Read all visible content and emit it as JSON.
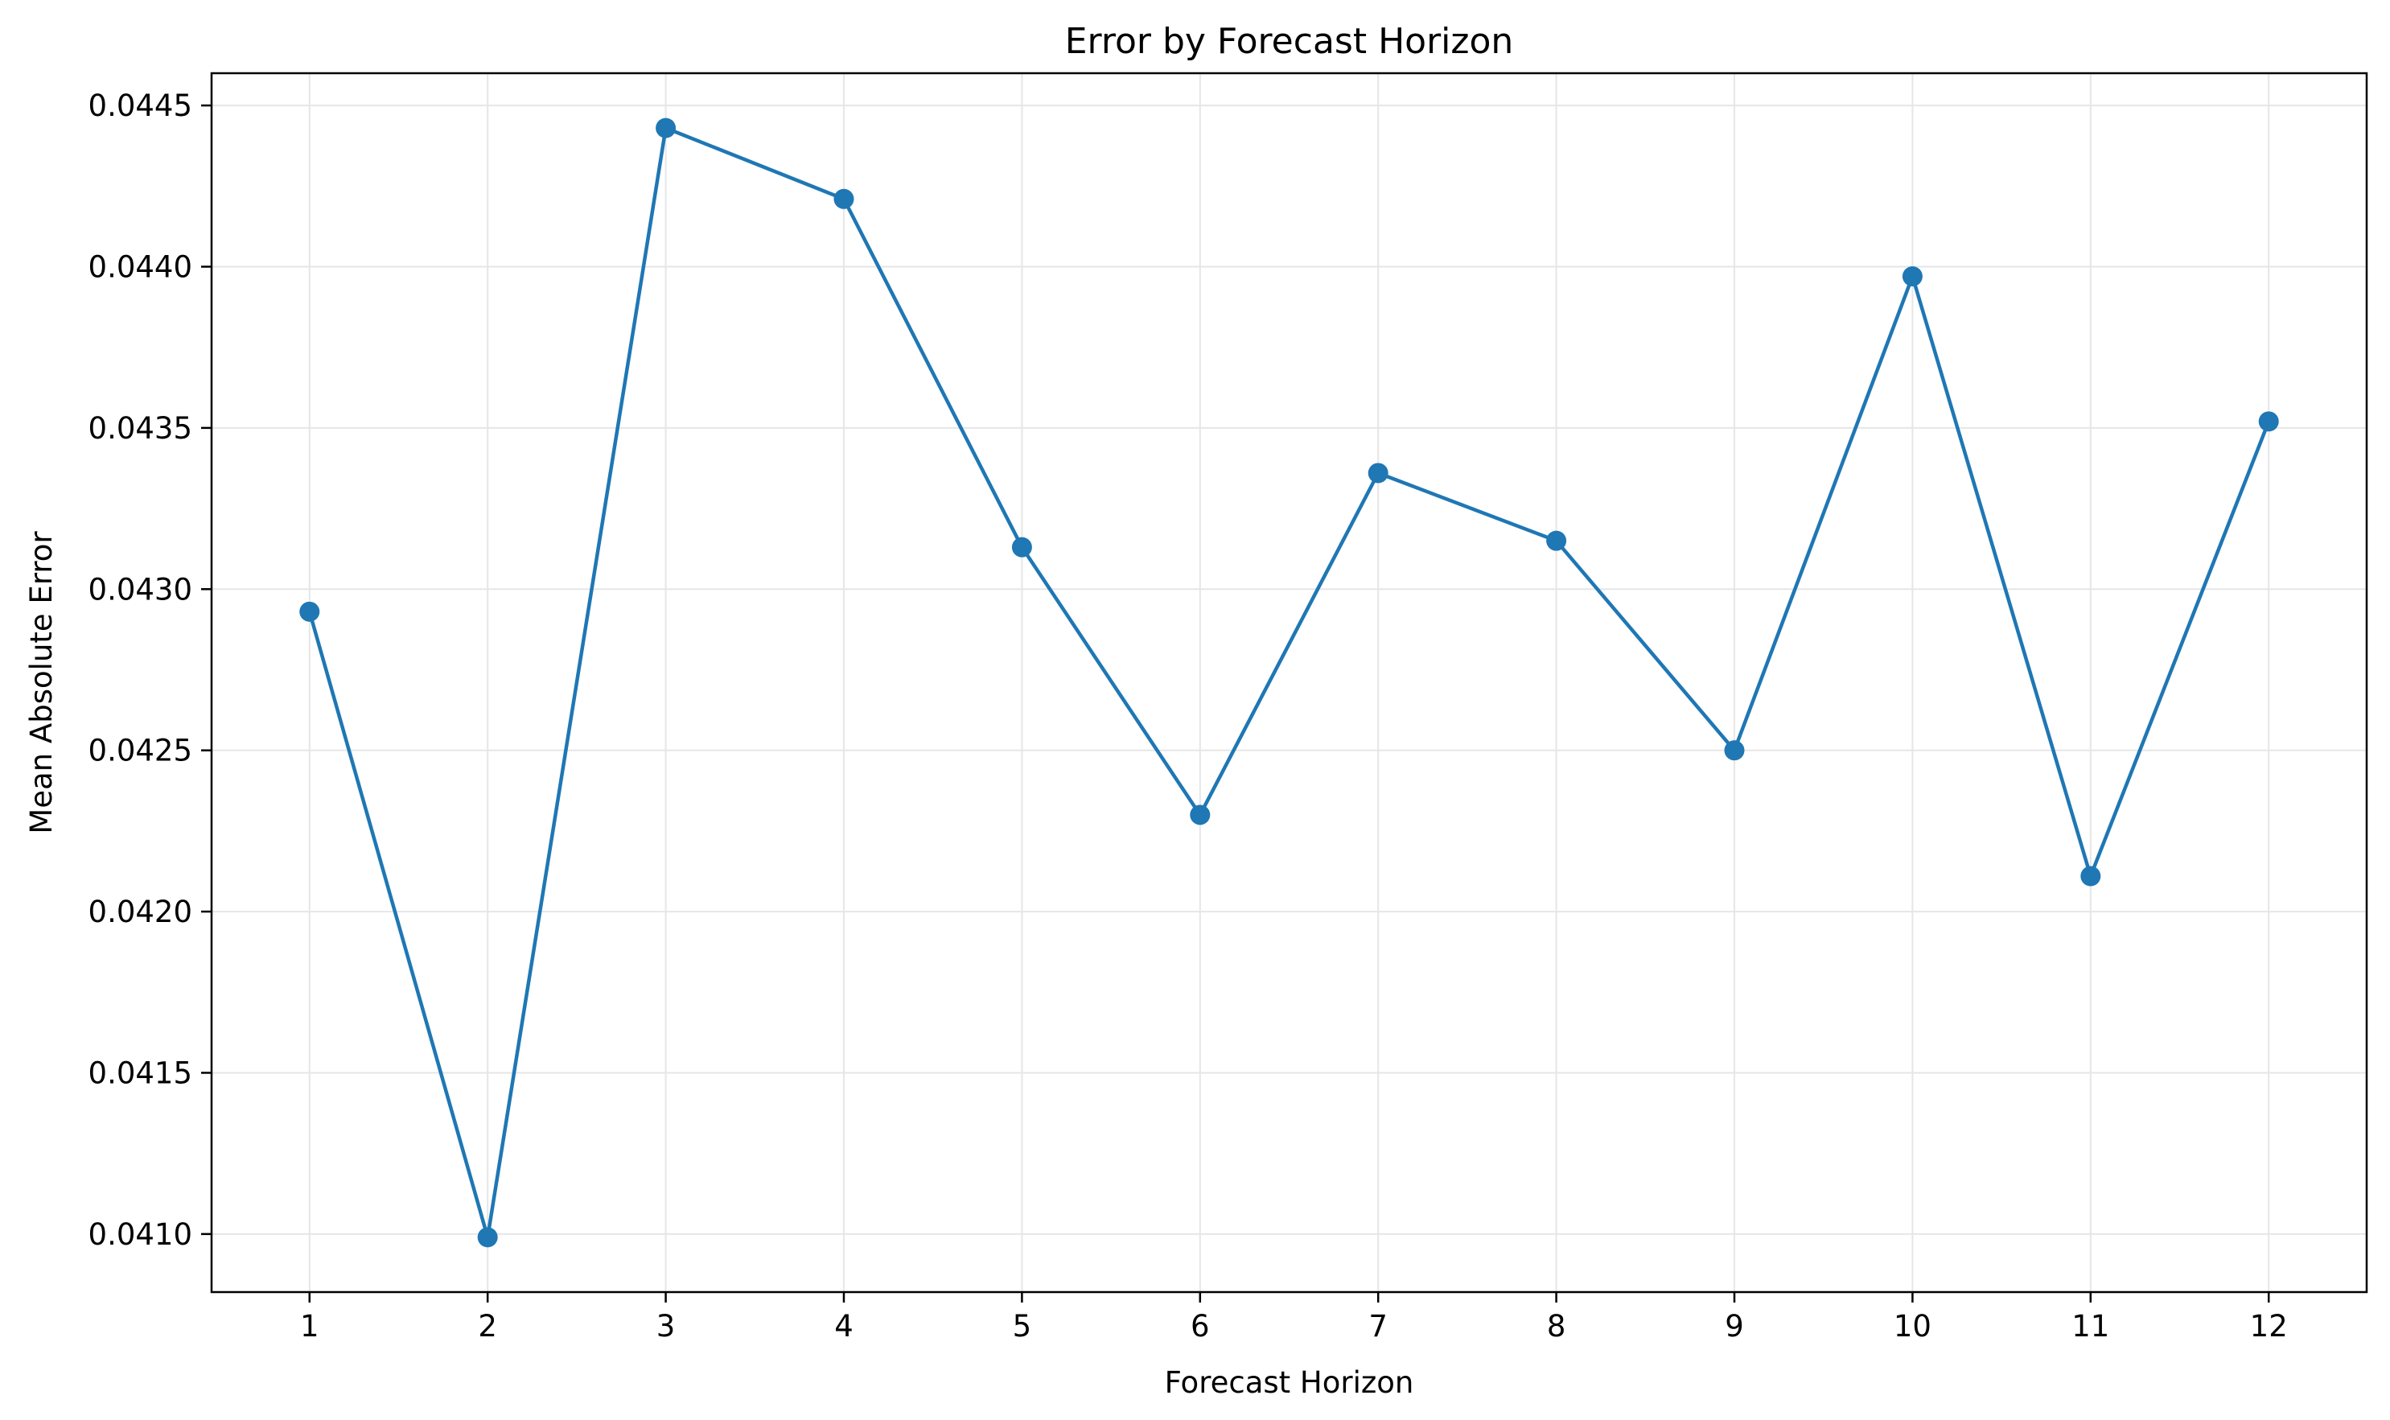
{
  "chart_data": {
    "type": "line",
    "title": "Error by Forecast Horizon",
    "xlabel": "Forecast Horizon",
    "ylabel": "Mean Absolute Error",
    "x": [
      1,
      2,
      3,
      4,
      5,
      6,
      7,
      8,
      9,
      10,
      11,
      12
    ],
    "series": [
      {
        "values": [
          0.04293,
          0.04099,
          0.04443,
          0.04421,
          0.04313,
          0.0423,
          0.04336,
          0.04315,
          0.0425,
          0.04397,
          0.04211,
          0.04352
        ],
        "color": "#1f77b4",
        "marker": "circle"
      }
    ],
    "xlim": [
      0.45,
      12.55
    ],
    "ylim": [
      0.04082,
      0.0446
    ],
    "xticks": [
      "1",
      "2",
      "3",
      "4",
      "5",
      "6",
      "7",
      "8",
      "9",
      "10",
      "11",
      "12"
    ],
    "yticks": [
      "0.0410",
      "0.0415",
      "0.0420",
      "0.0425",
      "0.0430",
      "0.0435",
      "0.0440",
      "0.0445"
    ],
    "grid": true,
    "colors": {
      "line": "#1f77b4",
      "grid": "#e6e6e6",
      "axes": "#000000"
    }
  }
}
